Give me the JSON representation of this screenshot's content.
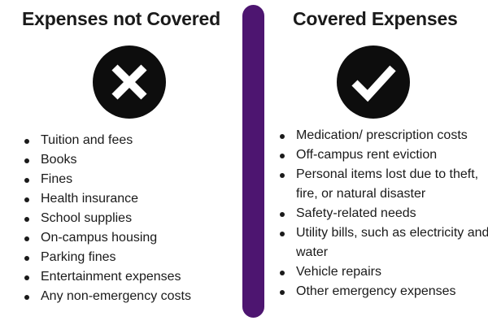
{
  "not_covered": {
    "title": "Expenses not Covered",
    "icon": "x-mark-icon",
    "items": [
      "Tuition and fees",
      "Books",
      "Fines",
      "Health insurance",
      "School supplies",
      "On-campus housing",
      "Parking fines",
      "Entertainment expenses",
      "Any  non-emergency costs"
    ]
  },
  "covered": {
    "title": "Covered Expenses",
    "icon": "check-mark-icon",
    "items": [
      "Medication/ prescription costs",
      "Off-campus rent eviction",
      "Personal items lost due to theft, fire, or natural disaster",
      "Safety-related needs",
      "Utility bills, such as electricity and water",
      "Vehicle repairs",
      "Other emergency expenses"
    ]
  },
  "colors": {
    "divider": "#4d1570",
    "icon_background": "#0d0d0d",
    "icon_foreground": "#ffffff",
    "text": "#1a1a1a"
  }
}
